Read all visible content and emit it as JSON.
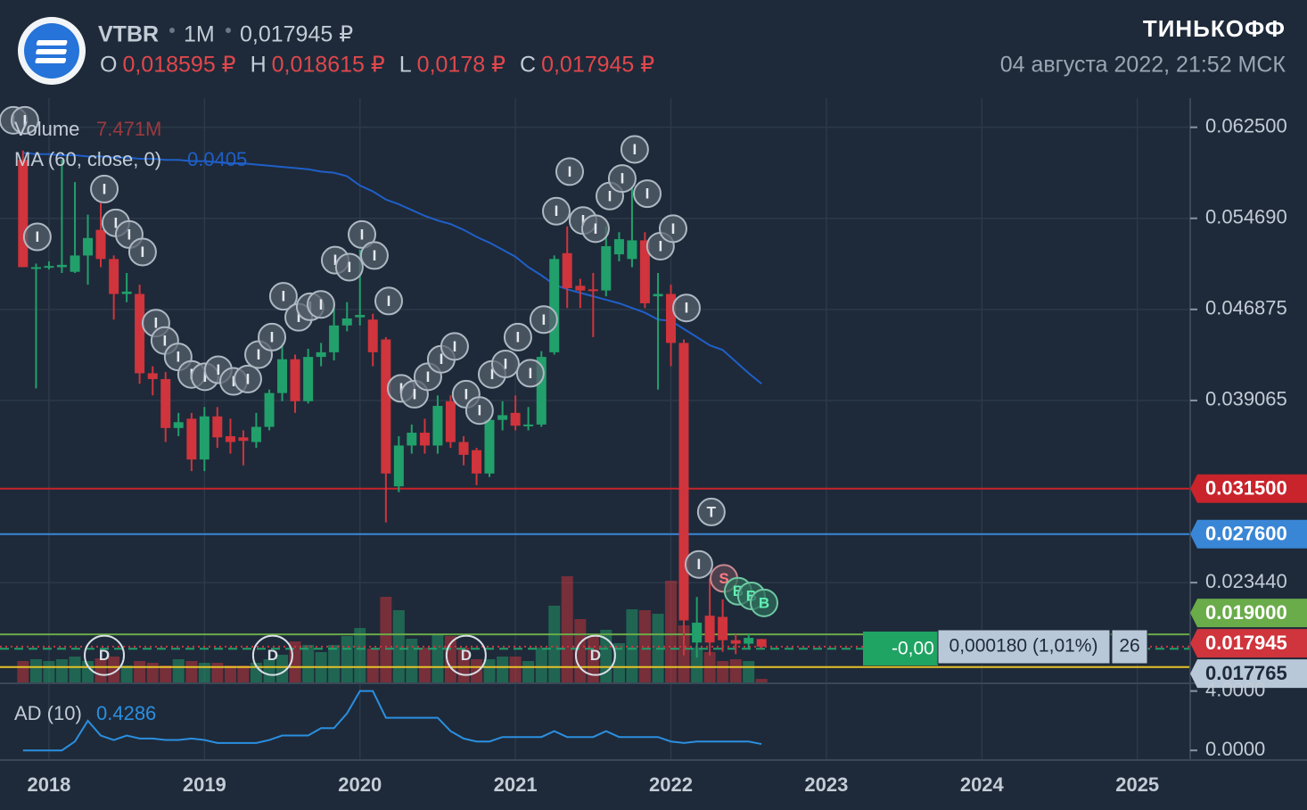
{
  "header": {
    "symbol": "VTBR",
    "interval": "1M",
    "last": "0,017945 ₽",
    "ohlc": [
      {
        "key": "O",
        "value": "0,018595 ₽"
      },
      {
        "key": "H",
        "value": "0,018615 ₽"
      },
      {
        "key": "L",
        "value": "0,0178 ₽"
      },
      {
        "key": "C",
        "value": "0,017945 ₽"
      }
    ],
    "brand": "ТИНЬКОФФ",
    "timestamp": "04 августа 2022, 21:52 МСК"
  },
  "order_widget": {
    "pnl": "-0,00",
    "change": "0,000180 (1,01%)",
    "qty": "26"
  },
  "chart_data": [
    {
      "type": "candlestick",
      "x": [
        2017.833,
        2017.917,
        2018,
        2018.083,
        2018.167,
        2018.25,
        2018.333,
        2018.417,
        2018.5,
        2018.583,
        2018.667,
        2018.75,
        2018.833,
        2018.917,
        2019,
        2019.083,
        2019.167,
        2019.25,
        2019.333,
        2019.417,
        2019.5,
        2019.583,
        2019.667,
        2019.75,
        2019.833,
        2019.917,
        2020,
        2020.083,
        2020.167,
        2020.25,
        2020.333,
        2020.417,
        2020.5,
        2020.583,
        2020.667,
        2020.75,
        2020.833,
        2020.917,
        2021,
        2021.083,
        2021.167,
        2021.25,
        2021.333,
        2021.417,
        2021.5,
        2021.583,
        2021.667,
        2021.75,
        2021.833,
        2021.917,
        2022,
        2022.083,
        2022.167,
        2022.25,
        2022.333,
        2022.417,
        2022.5,
        2022.583
      ],
      "open": [
        0.0597,
        0.0505,
        0.0505,
        0.0505,
        0.0501,
        0.0515,
        0.0537,
        0.0512,
        0.0482,
        0.0482,
        0.0414,
        0.0409,
        0.0367,
        0.0375,
        0.034,
        0.0377,
        0.036,
        0.0359,
        0.0355,
        0.0368,
        0.0397,
        0.0426,
        0.039,
        0.0428,
        0.0432,
        0.0455,
        0.0462,
        0.046,
        0.0443,
        0.0317,
        0.0352,
        0.0363,
        0.0352,
        0.039,
        0.0355,
        0.0348,
        0.0328,
        0.0374,
        0.038,
        0.0369,
        0.037,
        0.0432,
        0.0517,
        0.0489,
        0.0486,
        0.0485,
        0.0516,
        0.0512,
        0.0528,
        0.048,
        0.0482,
        0.044,
        0.0183,
        0.0206,
        0.0205,
        0.0185,
        0.0182,
        0.018595
      ],
      "high": [
        0.0605,
        0.0508,
        0.051,
        0.0597,
        0.0578,
        0.055,
        0.056,
        0.0515,
        0.05,
        0.049,
        0.042,
        0.0415,
        0.038,
        0.038,
        0.0385,
        0.0385,
        0.0375,
        0.0365,
        0.038,
        0.04,
        0.044,
        0.043,
        0.0435,
        0.044,
        0.0475,
        0.0475,
        0.052,
        0.0465,
        0.0445,
        0.036,
        0.037,
        0.0375,
        0.0395,
        0.0395,
        0.036,
        0.035,
        0.0376,
        0.039,
        0.0395,
        0.0385,
        0.0433,
        0.0515,
        0.054,
        0.0495,
        0.05,
        0.054,
        0.0535,
        0.0574,
        0.0535,
        0.05,
        0.049,
        0.0443,
        0.0222,
        0.0238,
        0.022,
        0.019,
        0.019,
        0.018615
      ],
      "low": [
        0.0505,
        0.0401,
        0.0503,
        0.05,
        0.05,
        0.049,
        0.0505,
        0.046,
        0.0475,
        0.0405,
        0.0395,
        0.0355,
        0.036,
        0.033,
        0.033,
        0.035,
        0.0345,
        0.0335,
        0.035,
        0.0365,
        0.039,
        0.038,
        0.0388,
        0.042,
        0.0425,
        0.045,
        0.0455,
        0.042,
        0.0286,
        0.0312,
        0.0345,
        0.0345,
        0.0345,
        0.035,
        0.0335,
        0.0318,
        0.0325,
        0.0365,
        0.0365,
        0.0365,
        0.0368,
        0.043,
        0.047,
        0.047,
        0.0445,
        0.048,
        0.051,
        0.0505,
        0.047,
        0.04,
        0.042,
        0.0172,
        0.017,
        0.0172,
        0.0175,
        0.0173,
        0.0178,
        0.0178
      ],
      "close": [
        0.0505,
        0.0505,
        0.0506,
        0.0507,
        0.0515,
        0.053,
        0.0512,
        0.0482,
        0.0484,
        0.0414,
        0.0409,
        0.0367,
        0.0372,
        0.034,
        0.0377,
        0.0359,
        0.0355,
        0.0356,
        0.0368,
        0.0397,
        0.0426,
        0.039,
        0.0428,
        0.0432,
        0.0455,
        0.0461,
        0.0464,
        0.0432,
        0.0328,
        0.0352,
        0.0363,
        0.0352,
        0.0386,
        0.0355,
        0.0344,
        0.0328,
        0.0374,
        0.0378,
        0.0369,
        0.037,
        0.0428,
        0.0512,
        0.0487,
        0.0485,
        0.0485,
        0.0523,
        0.0529,
        0.0528,
        0.0474,
        0.0482,
        0.044,
        0.0202,
        0.02,
        0.0183,
        0.0185,
        0.0182,
        0.0187,
        0.017945
      ],
      "up_color": "#22a06b",
      "down_color": "#d0343c",
      "xlim": [
        2017.685,
        2025.34
      ],
      "xticks": [
        2018,
        2019,
        2020,
        2021,
        2022,
        2023,
        2024,
        2025
      ],
      "ylim": [
        0.0148,
        0.065
      ],
      "yticks": [
        {
          "value": 0.0625,
          "label": "0.062500"
        },
        {
          "value": 0.05469,
          "label": "0.054690"
        },
        {
          "value": 0.046875,
          "label": "0.046875"
        },
        {
          "value": 0.039065,
          "label": "0.039065"
        },
        {
          "value": 0.02344,
          "label": "0.023440"
        }
      ],
      "volume": {
        "name": "Volume",
        "value_label": "7.471M",
        "values": [
          37.5,
          40.5,
          37.5,
          40.5,
          45,
          37.5,
          42,
          45,
          30,
          37.5,
          34.5,
          30,
          40.5,
          37.5,
          34.5,
          34.5,
          30,
          30,
          34.5,
          40.5,
          48,
          70.5,
          64.5,
          52.5,
          64.5,
          79.5,
          93,
          58.5,
          145.5,
          123,
          75,
          60,
          82.5,
          79.5,
          60,
          40.5,
          40.5,
          45,
          45,
          37.5,
          60,
          130.5,
          180,
          108,
          79.5,
          90,
          67.5,
          124.5,
          123,
          117,
          172.5,
          97.5,
          60,
          52.5,
          37.5,
          40.5,
          37.5,
          7.471
        ]
      },
      "ma": {
        "name": "MA (60, close, 0)",
        "color": "#1f5fc8",
        "value_label": "0.0405",
        "values": [
          0.0603,
          0.0602,
          0.0602,
          0.0601,
          0.0601,
          0.06,
          0.06,
          0.0599,
          0.0599,
          0.0598,
          0.0598,
          0.0597,
          0.0597,
          0.0596,
          0.0596,
          0.0595,
          0.0594,
          0.0594,
          0.0593,
          0.0592,
          0.0591,
          0.059,
          0.0589,
          0.0587,
          0.0586,
          0.0583,
          0.0575,
          0.057,
          0.0563,
          0.0559,
          0.0554,
          0.0549,
          0.0545,
          0.0542,
          0.0537,
          0.0531,
          0.0526,
          0.052,
          0.0514,
          0.0505,
          0.0498,
          0.049,
          0.0486,
          0.0483,
          0.048,
          0.0477,
          0.0474,
          0.047,
          0.0466,
          0.046,
          0.0459,
          0.0452,
          0.0445,
          0.0438,
          0.0434,
          0.0424,
          0.0414,
          0.0405
        ]
      },
      "levels": [
        {
          "value": 0.0315,
          "label": "0.031500",
          "color": "#c9232b",
          "style": "solid"
        },
        {
          "value": 0.0276,
          "label": "0.027600",
          "color": "#3a86d6",
          "style": "solid"
        },
        {
          "value": 0.019,
          "label": "0.019000",
          "color": "#6aab4a",
          "style": "solid"
        },
        {
          "value": 0.017945,
          "label": "0.017945",
          "color": "#d0343c",
          "style": "dotted"
        },
        {
          "value": 0.017765,
          "label": "0.017765",
          "color": "#22a06b",
          "style": "dashed",
          "text_color": "#1e2a39",
          "label_color": "#b9c8d8"
        },
        {
          "value": 0.0162,
          "color": "#e6c229",
          "style": "solid"
        }
      ],
      "events": [
        {
          "label": "I",
          "fill": "#56606c",
          "stroke": "#aeb8c3",
          "text_color": "#e4e9ee",
          "r": 15,
          "points": [
            [
              2017.771,
              0.0631
            ],
            [
              2017.845,
              0.0631
            ],
            [
              2017.925,
              0.0531
            ],
            [
              2018.356,
              0.0572
            ],
            [
              2018.43,
              0.0543
            ],
            [
              2018.516,
              0.0533
            ],
            [
              2018.602,
              0.0518
            ],
            [
              2018.688,
              0.0457
            ],
            [
              2018.745,
              0.0442
            ],
            [
              2018.831,
              0.0428
            ],
            [
              2018.917,
              0.0413
            ],
            [
              2019.003,
              0.0411
            ],
            [
              2019.089,
              0.0417
            ],
            [
              2019.187,
              0.0407
            ],
            [
              2019.279,
              0.0409
            ],
            [
              2019.348,
              0.043
            ],
            [
              2019.434,
              0.0445
            ],
            [
              2019.508,
              0.048
            ],
            [
              2019.606,
              0.0462
            ],
            [
              2019.68,
              0.0471
            ],
            [
              2019.749,
              0.0473
            ],
            [
              2019.841,
              0.0511
            ],
            [
              2019.932,
              0.0505
            ],
            [
              2020.013,
              0.0533
            ],
            [
              2020.093,
              0.0515
            ],
            [
              2020.185,
              0.0476
            ],
            [
              2020.265,
              0.0401
            ],
            [
              2020.351,
              0.0396
            ],
            [
              2020.437,
              0.0411
            ],
            [
              2020.523,
              0.0426
            ],
            [
              2020.609,
              0.0437
            ],
            [
              2020.683,
              0.0396
            ],
            [
              2020.769,
              0.0382
            ],
            [
              2020.85,
              0.0413
            ],
            [
              2020.936,
              0.0422
            ],
            [
              2021.016,
              0.0445
            ],
            [
              2021.096,
              0.0414
            ],
            [
              2021.182,
              0.046
            ],
            [
              2021.263,
              0.0553
            ],
            [
              2021.349,
              0.0587
            ],
            [
              2021.435,
              0.0545
            ],
            [
              2021.515,
              0.0538
            ],
            [
              2021.607,
              0.0566
            ],
            [
              2021.687,
              0.0581
            ],
            [
              2021.767,
              0.0606
            ],
            [
              2021.848,
              0.0568
            ],
            [
              2021.933,
              0.0523
            ],
            [
              2022.014,
              0.0538
            ],
            [
              2022.1,
              0.047
            ],
            [
              2022.18,
              0.025
            ]
          ]
        },
        {
          "label": "T",
          "fill": "#56606c",
          "stroke": "#aeb8c3",
          "text_color": "#e4e9ee",
          "r": 15,
          "points": [
            [
              2022.26,
              0.0295
            ]
          ]
        },
        {
          "label": "S",
          "fill": "#5e4a55",
          "stroke": "#c98a92",
          "text_color": "#ff7a82",
          "r": 15,
          "points": [
            [
              2022.341,
              0.0238
            ]
          ]
        },
        {
          "label": "B",
          "fill": "#2f6a5a",
          "stroke": "#6fc9a4",
          "text_color": "#5ff0b4",
          "r": 15,
          "points": [
            [
              2022.432,
              0.0227
            ],
            [
              2022.518,
              0.0223
            ],
            [
              2022.599,
              0.0217
            ]
          ]
        },
        {
          "label": "D",
          "fill": "transparent",
          "stroke": "#d8dee5",
          "text_color": "#d8dee5",
          "r": 22,
          "points": [
            [
              2018.356,
              0.0172
            ],
            [
              2019.439,
              0.0172
            ],
            [
              2020.683,
              0.0172
            ],
            [
              2021.515,
              0.0172
            ]
          ]
        }
      ]
    },
    {
      "type": "line",
      "x": [
        2017.833,
        2017.917,
        2018,
        2018.083,
        2018.167,
        2018.25,
        2018.333,
        2018.417,
        2018.5,
        2018.583,
        2018.667,
        2018.75,
        2018.833,
        2018.917,
        2019,
        2019.083,
        2019.167,
        2019.25,
        2019.333,
        2019.417,
        2019.5,
        2019.583,
        2019.667,
        2019.75,
        2019.833,
        2019.917,
        2020,
        2020.083,
        2020.167,
        2020.25,
        2020.333,
        2020.417,
        2020.5,
        2020.583,
        2020.667,
        2020.75,
        2020.833,
        2020.917,
        2021,
        2021.083,
        2021.167,
        2021.25,
        2021.333,
        2021.417,
        2021.5,
        2021.583,
        2021.667,
        2021.75,
        2021.833,
        2021.917,
        2022,
        2022.083,
        2022.167,
        2022.25,
        2022.333,
        2022.417,
        2022.5,
        2022.583
      ],
      "xlim": [
        2017.685,
        2025.34
      ],
      "ylim": [
        -0.65,
        4.4
      ],
      "yticks": [
        {
          "value": 4,
          "label": "4.0000"
        },
        {
          "value": 0,
          "label": "0.0000"
        }
      ],
      "series": [
        {
          "name": "AD (10)",
          "color": "#2b8fe0",
          "value_label": "0.4286",
          "values": [
            0,
            0,
            0,
            0,
            0.6,
            2.0,
            1.0,
            0.7,
            1.0,
            0.8,
            0.8,
            0.7,
            0.7,
            0.8,
            0.7,
            0.5,
            0.5,
            0.5,
            0.5,
            0.7,
            1.0,
            1.0,
            1.0,
            1.5,
            1.5,
            2.5,
            4.0,
            4.0,
            2.2,
            2.2,
            2.2,
            2.2,
            2.2,
            1.3,
            0.8,
            0.6,
            0.6,
            0.9,
            0.9,
            0.9,
            0.9,
            1.3,
            0.9,
            0.9,
            0.9,
            1.3,
            0.9,
            0.9,
            0.9,
            0.9,
            0.6,
            0.5,
            0.6,
            0.6,
            0.6,
            0.6,
            0.6,
            0.4286
          ]
        }
      ]
    }
  ]
}
